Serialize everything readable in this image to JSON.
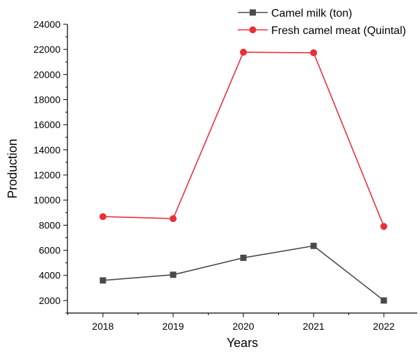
{
  "chart_data": {
    "type": "line",
    "xlabel": "Years",
    "ylabel": "Production",
    "categories": [
      "2018",
      "2019",
      "2020",
      "2021",
      "2022"
    ],
    "ylim": [
      1000,
      24000
    ],
    "yticks": [
      2000,
      4000,
      6000,
      8000,
      10000,
      12000,
      14000,
      16000,
      18000,
      20000,
      22000,
      24000
    ],
    "grid": false,
    "legend_position": "top-right",
    "series": [
      {
        "name": "Camel milk (ton)",
        "color": "#4a4a4a",
        "marker": "square",
        "values": [
          3600,
          4050,
          5400,
          6350,
          2000
        ]
      },
      {
        "name": "Fresh camel meat  (Quintal)",
        "color": "#e8303a",
        "marker": "circle",
        "values": [
          8680,
          8520,
          21780,
          21730,
          7900
        ]
      }
    ]
  }
}
